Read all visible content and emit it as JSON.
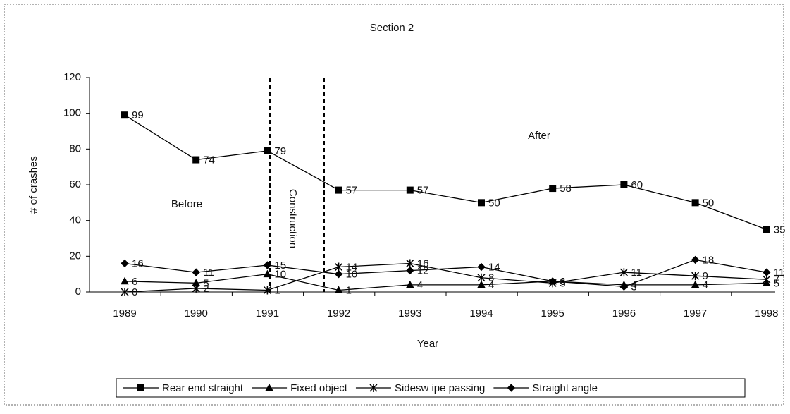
{
  "chart_data": {
    "type": "line",
    "title": "Section 2",
    "xlabel": "Year",
    "ylabel": "# of crashes",
    "categories": [
      "1989",
      "1990",
      "1991",
      "1992",
      "1993",
      "1994",
      "1995",
      "1996",
      "1997",
      "1998"
    ],
    "series": [
      {
        "name": "Rear end straight",
        "color": "#000000",
        "marker": "square",
        "values": [
          99,
          74,
          79,
          57,
          57,
          50,
          58,
          60,
          50,
          35
        ]
      },
      {
        "name": "Fixed object",
        "color": "#000000",
        "marker": "triangle",
        "values": [
          6,
          5,
          10,
          1,
          4,
          4,
          6,
          4,
          4,
          5
        ]
      },
      {
        "name": "Sidesw ipe passing",
        "color": "#000000",
        "marker": "star",
        "values": [
          0,
          2,
          1,
          14,
          16,
          8,
          5,
          11,
          9,
          7
        ]
      },
      {
        "name": "Straight angle",
        "color": "#000000",
        "marker": "diamond",
        "values": [
          16,
          11,
          15,
          10,
          12,
          14,
          6,
          3,
          18,
          11
        ]
      }
    ],
    "annotations": [
      "Before",
      "Construction",
      "After"
    ],
    "ylim": [
      0,
      120
    ],
    "yticks": [
      0,
      20,
      40,
      60,
      80,
      100,
      120
    ],
    "legend": "bottom"
  }
}
